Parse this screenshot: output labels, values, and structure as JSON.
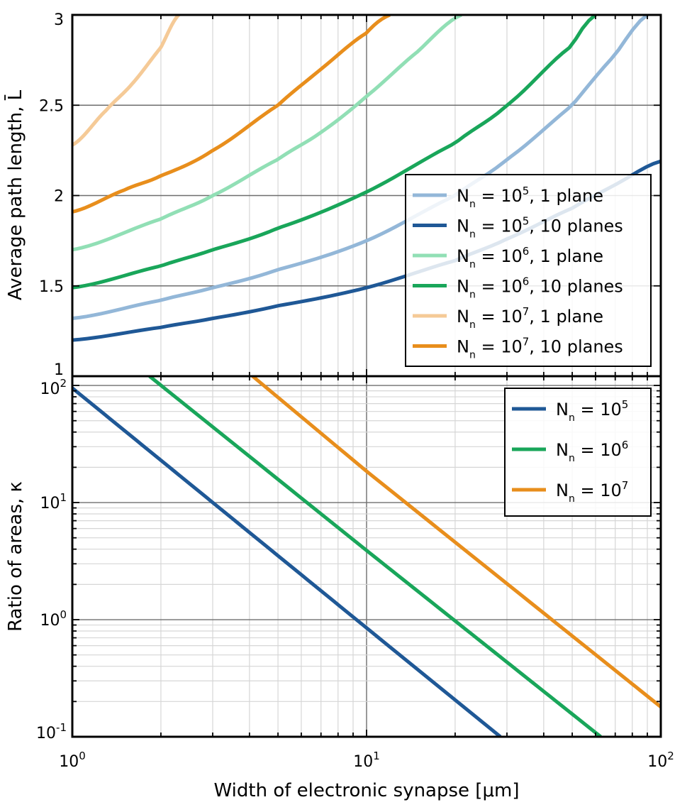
{
  "chart_data": [
    {
      "type": "line",
      "panel": "top",
      "xscale": "log",
      "yscale": "linear",
      "xlim": [
        1,
        100
      ],
      "ylim": [
        1,
        3
      ],
      "ylabel": "Average path length, L̄",
      "yticks": [
        1,
        1.5,
        2,
        2.5,
        3
      ],
      "ytick_labels": [
        "1",
        "1.5",
        "2",
        "2.5",
        "3"
      ],
      "grid": true,
      "legend_position": "right",
      "series": [
        {
          "name": "N_n = 10^5, 1 plane",
          "label_main": "N",
          "label_sub": "n",
          "label_mid": " = 10",
          "label_sup": "5",
          "label_tail": ", 1 plane",
          "color": "#93b7d8",
          "x": [
            1,
            2,
            3,
            5,
            10,
            20,
            30,
            50,
            70,
            90
          ],
          "y": [
            1.32,
            1.42,
            1.49,
            1.59,
            1.75,
            2.0,
            2.2,
            2.5,
            2.78,
            3.0
          ]
        },
        {
          "name": "N_n = 10^5, 10 planes",
          "label_main": "N",
          "label_sub": "n",
          "label_mid": " = 10",
          "label_sup": "5",
          "label_tail": ", 10 planes",
          "color": "#1f5896",
          "x": [
            1,
            2,
            3,
            5,
            10,
            20,
            30,
            50,
            70,
            100
          ],
          "y": [
            1.2,
            1.27,
            1.32,
            1.39,
            1.49,
            1.64,
            1.76,
            1.93,
            2.06,
            2.19
          ]
        },
        {
          "name": "N_n = 10^6, 1 plane",
          "label_main": "N",
          "label_sub": "n",
          "label_mid": " = 10",
          "label_sup": "6",
          "label_tail": ", 1 plane",
          "color": "#91dfb5",
          "x": [
            1,
            2,
            3,
            5,
            7,
            10,
            15,
            21
          ],
          "y": [
            1.7,
            1.87,
            2.0,
            2.2,
            2.35,
            2.55,
            2.8,
            3.0
          ]
        },
        {
          "name": "N_n = 10^6, 10 planes",
          "label_main": "N",
          "label_sub": "n",
          "label_mid": " = 10",
          "label_sup": "6",
          "label_tail": ", 10 planes",
          "color": "#19a65a",
          "x": [
            1,
            2,
            3,
            5,
            10,
            20,
            30,
            50,
            60
          ],
          "y": [
            1.49,
            1.61,
            1.7,
            1.82,
            2.02,
            2.29,
            2.5,
            2.83,
            3.0
          ]
        },
        {
          "name": "N_n = 10^7, 1 plane",
          "label_main": "N",
          "label_sub": "n",
          "label_mid": " = 10",
          "label_sup": "7",
          "label_tail": ", 1 plane",
          "color": "#f5ca97",
          "x": [
            1,
            1.3,
            1.6,
            2,
            2.3
          ],
          "y": [
            2.28,
            2.47,
            2.62,
            2.82,
            3.0
          ]
        },
        {
          "name": "N_n = 10^7, 10 planes",
          "label_main": "N",
          "label_sub": "n",
          "label_mid": " = 10",
          "label_sup": "7",
          "label_tail": ", 10 planes",
          "color": "#e88e1c",
          "x": [
            1,
            1.5,
            2,
            3,
            5,
            7,
            10,
            12
          ],
          "y": [
            1.91,
            2.03,
            2.11,
            2.25,
            2.5,
            2.7,
            2.9,
            3.0
          ]
        }
      ]
    },
    {
      "type": "line",
      "panel": "bottom",
      "xscale": "log",
      "yscale": "log",
      "xlim": [
        1,
        100
      ],
      "ylim": [
        0.1,
        120
      ],
      "xlabel": "Width of electronic synapse [μm]",
      "ylabel": "Ratio of areas, κ",
      "xticks": [
        1,
        10,
        100
      ],
      "xtick_bases": [
        "10",
        "10",
        "10"
      ],
      "xtick_exps": [
        "0",
        "1",
        "2"
      ],
      "yticks": [
        0.1,
        1,
        10,
        100
      ],
      "ytick_bases": [
        "10",
        "10",
        "10",
        "10"
      ],
      "ytick_exps": [
        "-1",
        "0",
        "1",
        "2"
      ],
      "grid": true,
      "legend_position": "top-right",
      "series": [
        {
          "name": "N_n = 10^5",
          "label_main": "N",
          "label_sub": "n",
          "label_mid": " = 10",
          "label_sup": "5",
          "label_tail": "",
          "color": "#1f5896",
          "x": [
            1,
            10,
            28.5
          ],
          "y": [
            95,
            0.85,
            0.1
          ]
        },
        {
          "name": "N_n = 10^6",
          "label_main": "N",
          "label_sub": "n",
          "label_mid": " = 10",
          "label_sup": "6",
          "label_tail": "",
          "color": "#19a65a",
          "x": [
            1.83,
            10,
            62.5
          ],
          "y": [
            120,
            3.9,
            0.1
          ]
        },
        {
          "name": "N_n = 10^7",
          "label_main": "N",
          "label_sub": "n",
          "label_mid": " = 10",
          "label_sup": "7",
          "label_tail": "",
          "color": "#e88e1c",
          "x": [
            4.1,
            10,
            100
          ],
          "y": [
            120,
            18.5,
            0.18
          ]
        }
      ]
    }
  ]
}
